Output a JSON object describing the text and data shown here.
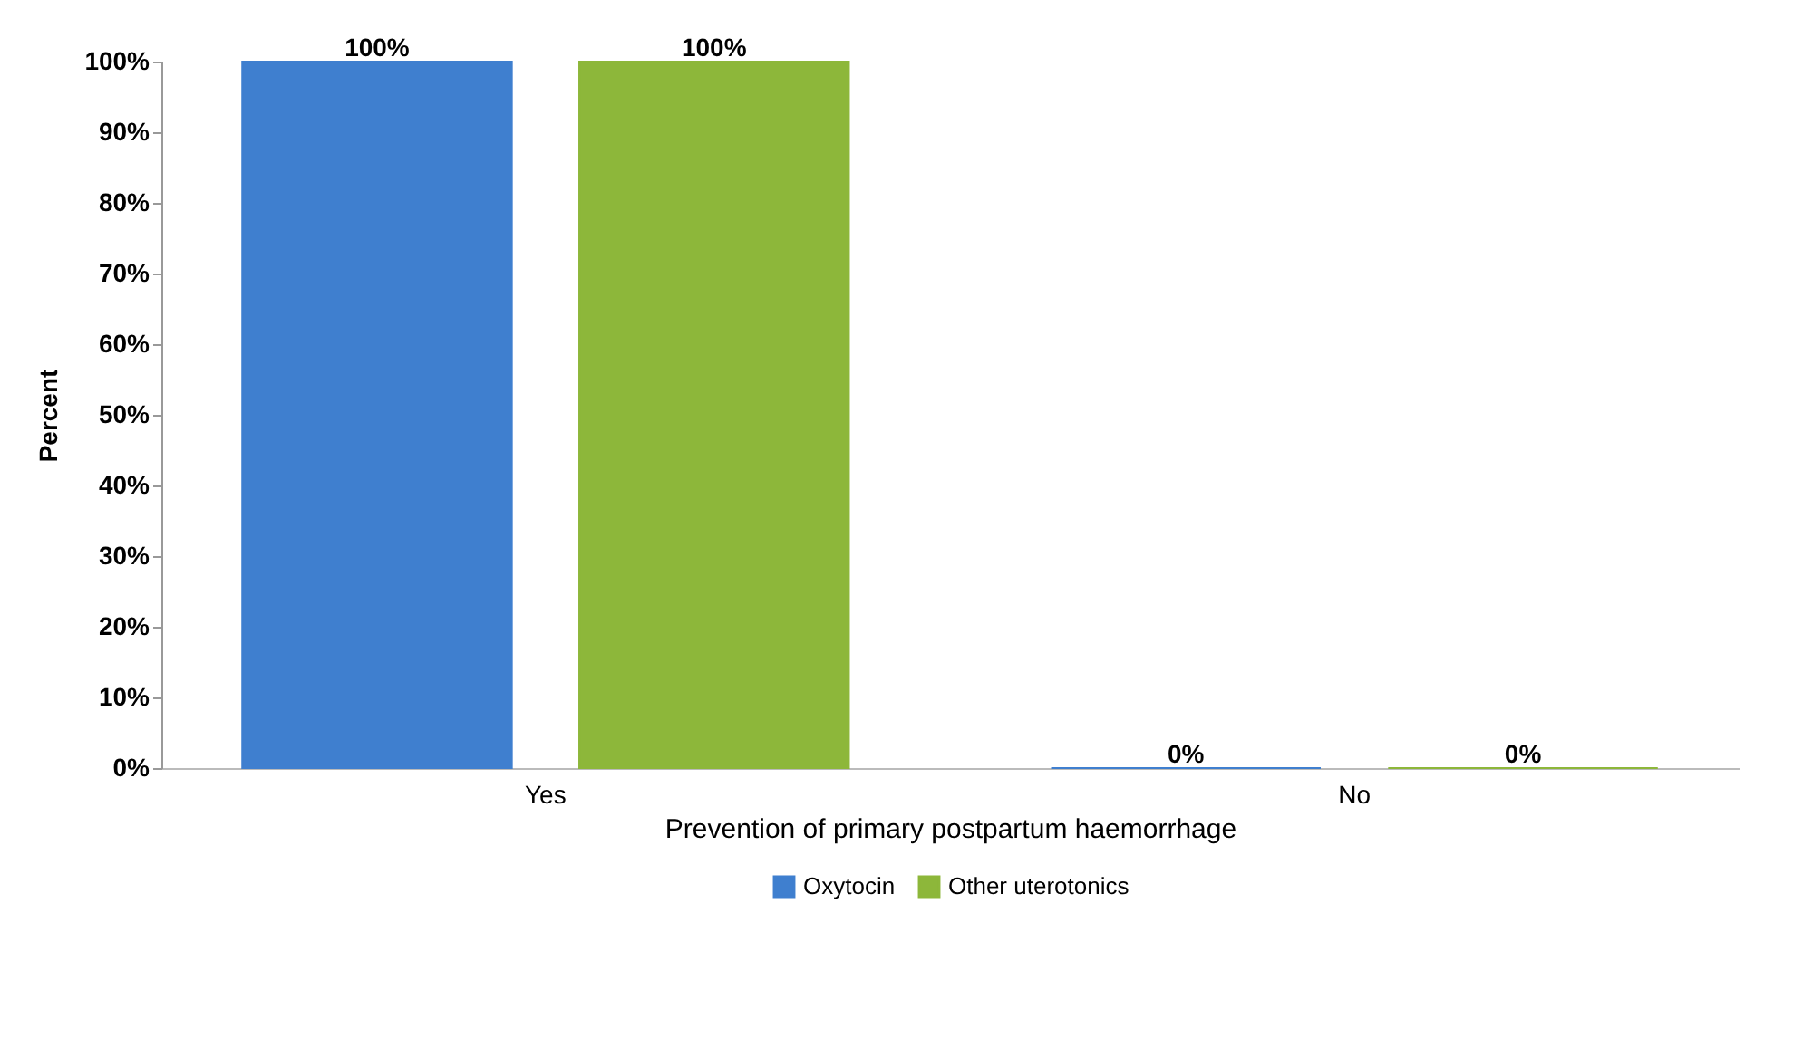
{
  "chart_data": {
    "type": "bar",
    "xlabel": "Prevention of primary postpartum haemorrhage",
    "ylabel": "Percent",
    "categories": [
      "Yes",
      "No"
    ],
    "series": [
      {
        "name": "Oxytocin",
        "color": "#3f7fcf",
        "values": [
          100,
          0
        ],
        "value_labels": [
          "100%",
          "0%"
        ]
      },
      {
        "name": "Other uterotonics",
        "color": "#8db73a",
        "values": [
          100,
          0
        ],
        "value_labels": [
          "100%",
          "0%"
        ]
      }
    ],
    "ylim": [
      0,
      100
    ],
    "yticks": [
      {
        "value": 0,
        "label": "0%"
      },
      {
        "value": 10,
        "label": "10%"
      },
      {
        "value": 20,
        "label": "20%"
      },
      {
        "value": 30,
        "label": "30%"
      },
      {
        "value": 40,
        "label": "40%"
      },
      {
        "value": 50,
        "label": "50%"
      },
      {
        "value": 60,
        "label": "60%"
      },
      {
        "value": 70,
        "label": "70%"
      },
      {
        "value": 80,
        "label": "80%"
      },
      {
        "value": 90,
        "label": "90%"
      },
      {
        "value": 100,
        "label": "100%"
      }
    ],
    "grid": false,
    "legend": "bottom"
  }
}
